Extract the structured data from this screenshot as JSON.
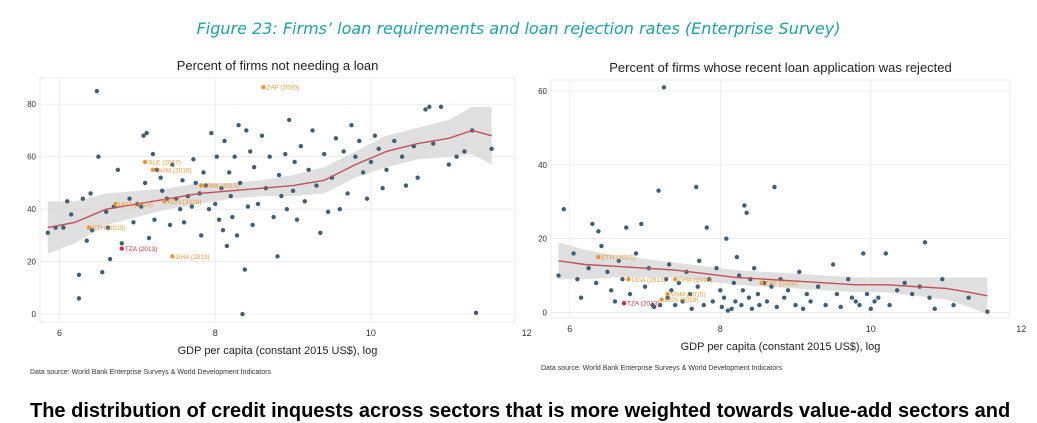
{
  "figure_caption": "Figure 23: Firms’ loan requirements and loan rejection rates (Enterprise Survey)",
  "body_text": "The distribution of credit inquests across sectors that is more weighted towards value-add sectors and",
  "colors": {
    "point": "#3d5f7a",
    "highlight_orange": "#f0962e",
    "highlight_red": "#e0283c",
    "fit_line": "#c0505a",
    "ci_band": "#d9d9d9",
    "caption": "#1aa3a3"
  },
  "chart_data": [
    {
      "type": "scatter",
      "title": "Percent of firms not needing a loan",
      "xlabel": "GDP per capita (constant 2015 US$), log",
      "ylabel": "",
      "source": "Data source: World Bank Enterprise Surveys & World Development Indicators",
      "xlim": [
        5.75,
        11.85
      ],
      "ylim": [
        -3,
        90
      ],
      "xticks": [
        6,
        8,
        10,
        12
      ],
      "yticks": [
        0,
        20,
        40,
        60,
        80
      ],
      "grid": true,
      "points": [
        [
          5.85,
          31
        ],
        [
          5.95,
          33
        ],
        [
          6.05,
          33
        ],
        [
          6.1,
          43
        ],
        [
          6.15,
          38
        ],
        [
          6.25,
          6
        ],
        [
          6.25,
          15
        ],
        [
          6.3,
          44
        ],
        [
          6.35,
          28
        ],
        [
          6.4,
          46
        ],
        [
          6.42,
          32
        ],
        [
          6.48,
          85
        ],
        [
          6.5,
          60
        ],
        [
          6.55,
          16
        ],
        [
          6.6,
          39
        ],
        [
          6.62,
          33
        ],
        [
          6.65,
          21
        ],
        [
          6.7,
          41
        ],
        [
          6.75,
          55
        ],
        [
          6.8,
          27
        ],
        [
          6.9,
          44
        ],
        [
          6.95,
          35
        ],
        [
          7.0,
          42
        ],
        [
          7.05,
          41
        ],
        [
          7.08,
          68
        ],
        [
          7.1,
          50
        ],
        [
          7.12,
          69
        ],
        [
          7.15,
          29
        ],
        [
          7.2,
          61
        ],
        [
          7.22,
          36
        ],
        [
          7.25,
          55
        ],
        [
          7.3,
          52
        ],
        [
          7.32,
          47
        ],
        [
          7.38,
          44
        ],
        [
          7.42,
          34
        ],
        [
          7.45,
          57
        ],
        [
          7.5,
          44
        ],
        [
          7.55,
          40
        ],
        [
          7.58,
          51
        ],
        [
          7.6,
          35
        ],
        [
          7.65,
          45
        ],
        [
          7.7,
          41
        ],
        [
          7.72,
          59
        ],
        [
          7.75,
          50
        ],
        [
          7.8,
          46
        ],
        [
          7.82,
          30
        ],
        [
          7.85,
          54
        ],
        [
          7.88,
          49
        ],
        [
          7.92,
          40
        ],
        [
          7.95,
          69
        ],
        [
          8.0,
          42
        ],
        [
          8.02,
          60
        ],
        [
          8.05,
          36
        ],
        [
          8.08,
          48
        ],
        [
          8.1,
          32
        ],
        [
          8.12,
          66
        ],
        [
          8.15,
          26
        ],
        [
          8.18,
          54
        ],
        [
          8.2,
          45
        ],
        [
          8.22,
          37
        ],
        [
          8.25,
          60
        ],
        [
          8.28,
          30
        ],
        [
          8.3,
          72
        ],
        [
          8.32,
          50
        ],
        [
          8.35,
          0
        ],
        [
          8.38,
          17
        ],
        [
          8.4,
          70
        ],
        [
          8.42,
          41
        ],
        [
          8.45,
          62
        ],
        [
          8.48,
          34
        ],
        [
          8.5,
          56
        ],
        [
          8.55,
          42
        ],
        [
          8.6,
          68
        ],
        [
          8.65,
          48
        ],
        [
          8.7,
          60
        ],
        [
          8.75,
          37
        ],
        [
          8.8,
          22
        ],
        [
          8.82,
          53
        ],
        [
          8.85,
          45
        ],
        [
          8.9,
          61
        ],
        [
          8.92,
          40
        ],
        [
          8.95,
          74
        ],
        [
          9.0,
          47
        ],
        [
          9.02,
          58
        ],
        [
          9.05,
          36
        ],
        [
          9.1,
          64
        ],
        [
          9.15,
          43
        ],
        [
          9.2,
          55
        ],
        [
          9.25,
          70
        ],
        [
          9.3,
          49
        ],
        [
          9.35,
          31
        ],
        [
          9.4,
          61
        ],
        [
          9.45,
          39
        ],
        [
          9.5,
          52
        ],
        [
          9.55,
          67
        ],
        [
          9.6,
          40
        ],
        [
          9.65,
          62
        ],
        [
          9.7,
          46
        ],
        [
          9.75,
          72
        ],
        [
          9.8,
          60
        ],
        [
          9.85,
          66
        ],
        [
          9.9,
          54
        ],
        [
          9.95,
          44
        ],
        [
          10.0,
          58
        ],
        [
          10.05,
          68
        ],
        [
          10.1,
          63
        ],
        [
          10.15,
          48
        ],
        [
          10.2,
          55
        ],
        [
          10.3,
          66
        ],
        [
          10.4,
          60
        ],
        [
          10.45,
          49
        ],
        [
          10.55,
          64
        ],
        [
          10.6,
          52
        ],
        [
          10.7,
          78
        ],
        [
          10.75,
          79
        ],
        [
          10.8,
          65
        ],
        [
          10.9,
          79
        ],
        [
          11.0,
          57
        ],
        [
          11.1,
          60
        ],
        [
          11.2,
          62
        ],
        [
          11.3,
          70
        ],
        [
          11.35,
          0.5
        ],
        [
          11.55,
          63
        ]
      ],
      "highlights": [
        {
          "label": "ZAF (2020)",
          "x": 8.62,
          "y": 86.5,
          "color": "orange"
        },
        {
          "label": "SLE (2017)",
          "x": 7.1,
          "y": 58,
          "color": "orange"
        },
        {
          "label": "GHM (2016)",
          "x": 7.2,
          "y": 55,
          "color": "orange"
        },
        {
          "label": "VNM (2015)",
          "x": 7.82,
          "y": 49,
          "color": "orange"
        },
        {
          "label": "KEN (2018)",
          "x": 7.35,
          "y": 43,
          "color": "orange"
        },
        {
          "label": "UGA (2013)",
          "x": 6.72,
          "y": 42,
          "color": "orange"
        },
        {
          "label": "ETH (2015)",
          "x": 6.38,
          "y": 33,
          "color": "orange"
        },
        {
          "label": "TZA (2013)",
          "x": 6.8,
          "y": 25,
          "color": "red"
        },
        {
          "label": "GHA (2013)",
          "x": 7.45,
          "y": 22,
          "color": "orange"
        }
      ],
      "fit_x": [
        5.85,
        6.2,
        6.6,
        7.0,
        7.4,
        7.8,
        8.2,
        8.6,
        9.0,
        9.4,
        9.8,
        10.2,
        10.6,
        11.0,
        11.3,
        11.55
      ],
      "fit_y": [
        33,
        35,
        40,
        42,
        44,
        46,
        47,
        48,
        49,
        51,
        57,
        62,
        65,
        67,
        70,
        68
      ],
      "fit_ci": [
        10,
        8,
        6,
        5,
        4,
        4,
        3,
        3,
        4,
        5,
        5,
        6,
        6,
        7,
        9,
        11
      ]
    },
    {
      "type": "scatter",
      "title": "Percent of firms whose recent loan application was rejected",
      "xlabel": "GDP per capita (constant 2015 US$), log",
      "ylabel": "",
      "source": "Data source: World Bank Enterprise Surveys & World Development Indicators",
      "xlim": [
        5.75,
        11.85
      ],
      "ylim": [
        -1.5,
        63
      ],
      "xticks": [
        6,
        8,
        10,
        12
      ],
      "yticks": [
        0,
        20,
        40,
        60
      ],
      "grid": true,
      "points": [
        [
          5.85,
          10
        ],
        [
          5.92,
          28
        ],
        [
          6.05,
          16
        ],
        [
          6.1,
          9
        ],
        [
          6.15,
          4
        ],
        [
          6.25,
          12
        ],
        [
          6.3,
          24
        ],
        [
          6.35,
          8
        ],
        [
          6.38,
          22
        ],
        [
          6.42,
          18
        ],
        [
          6.5,
          11
        ],
        [
          6.55,
          6
        ],
        [
          6.6,
          3
        ],
        [
          6.65,
          14
        ],
        [
          6.7,
          9
        ],
        [
          6.75,
          23
        ],
        [
          6.8,
          5
        ],
        [
          6.88,
          16
        ],
        [
          6.95,
          24
        ],
        [
          7.0,
          7
        ],
        [
          7.05,
          12
        ],
        [
          7.1,
          2
        ],
        [
          7.12,
          1.5
        ],
        [
          7.18,
          33
        ],
        [
          7.2,
          2
        ],
        [
          7.25,
          61
        ],
        [
          7.28,
          9
        ],
        [
          7.3,
          4
        ],
        [
          7.32,
          13
        ],
        [
          7.35,
          6
        ],
        [
          7.4,
          2
        ],
        [
          7.45,
          8
        ],
        [
          7.5,
          3
        ],
        [
          7.55,
          11
        ],
        [
          7.6,
          5
        ],
        [
          7.62,
          1
        ],
        [
          7.68,
          34
        ],
        [
          7.7,
          7
        ],
        [
          7.72,
          14
        ],
        [
          7.78,
          2
        ],
        [
          7.82,
          23
        ],
        [
          7.85,
          9
        ],
        [
          7.9,
          3
        ],
        [
          7.95,
          12
        ],
        [
          8.0,
          6
        ],
        [
          8.02,
          1.5
        ],
        [
          8.05,
          4
        ],
        [
          8.08,
          20
        ],
        [
          8.1,
          0.5
        ],
        [
          8.15,
          1
        ],
        [
          8.18,
          8
        ],
        [
          8.2,
          3
        ],
        [
          8.22,
          15
        ],
        [
          8.25,
          10
        ],
        [
          8.28,
          2
        ],
        [
          8.3,
          6
        ],
        [
          8.32,
          29
        ],
        [
          8.35,
          27
        ],
        [
          8.38,
          4
        ],
        [
          8.4,
          9
        ],
        [
          8.42,
          1
        ],
        [
          8.45,
          12
        ],
        [
          8.5,
          5
        ],
        [
          8.52,
          2
        ],
        [
          8.58,
          8
        ],
        [
          8.62,
          3
        ],
        [
          8.68,
          7
        ],
        [
          8.72,
          34
        ],
        [
          8.75,
          1.5
        ],
        [
          8.8,
          9
        ],
        [
          8.85,
          4
        ],
        [
          8.9,
          6
        ],
        [
          9.0,
          2
        ],
        [
          9.05,
          11
        ],
        [
          9.1,
          1
        ],
        [
          9.15,
          5
        ],
        [
          9.2,
          3
        ],
        [
          9.3,
          7
        ],
        [
          9.4,
          2
        ],
        [
          9.5,
          13
        ],
        [
          9.55,
          5
        ],
        [
          9.6,
          1.5
        ],
        [
          9.7,
          9
        ],
        [
          9.75,
          4
        ],
        [
          9.8,
          3
        ],
        [
          9.85,
          2
        ],
        [
          9.9,
          16
        ],
        [
          9.95,
          5
        ],
        [
          10.0,
          1
        ],
        [
          10.05,
          3
        ],
        [
          10.1,
          4
        ],
        [
          10.2,
          16
        ],
        [
          10.25,
          2
        ],
        [
          10.35,
          6
        ],
        [
          10.45,
          8
        ],
        [
          10.55,
          5
        ],
        [
          10.65,
          7
        ],
        [
          10.72,
          19
        ],
        [
          10.78,
          4
        ],
        [
          10.85,
          1
        ],
        [
          10.95,
          9
        ],
        [
          11.1,
          2
        ],
        [
          11.3,
          4
        ],
        [
          11.55,
          0.2
        ]
      ],
      "highlights": [
        {
          "label": "ETH (2015)",
          "x": 6.38,
          "y": 15,
          "color": "orange"
        },
        {
          "label": "UGA (2013)",
          "x": 6.78,
          "y": 9,
          "color": "orange"
        },
        {
          "label": "GHA (2013)",
          "x": 7.4,
          "y": 9,
          "color": "orange"
        },
        {
          "label": "ZAF (2020)",
          "x": 8.55,
          "y": 8,
          "color": "orange"
        },
        {
          "label": "VNM (2015)",
          "x": 7.3,
          "y": 5,
          "color": "orange"
        },
        {
          "label": "KEN (2018)",
          "x": 7.22,
          "y": 3.5,
          "color": "orange"
        },
        {
          "label": "TZA (2013)",
          "x": 6.72,
          "y": 2.5,
          "color": "red"
        }
      ],
      "fit_x": [
        5.85,
        6.2,
        6.6,
        7.0,
        7.4,
        7.8,
        8.2,
        8.6,
        9.0,
        9.4,
        9.8,
        10.2,
        10.6,
        11.0,
        11.3,
        11.55
      ],
      "fit_y": [
        14,
        13,
        12.5,
        12,
        11.5,
        10.5,
        9.5,
        9,
        8.5,
        8,
        7.5,
        7.5,
        7,
        6.5,
        5.5,
        4.5
      ],
      "fit_ci": [
        5,
        4,
        3,
        2.5,
        2,
        2,
        2,
        2,
        2,
        2,
        2,
        2,
        2.5,
        3,
        4,
        5
      ]
    }
  ]
}
